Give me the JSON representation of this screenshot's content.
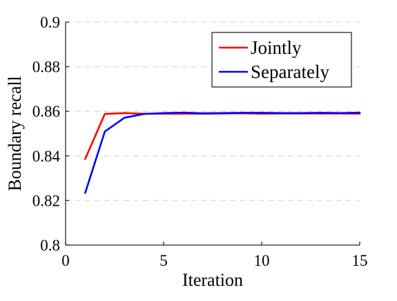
{
  "chart_data": {
    "type": "line",
    "title": "",
    "xlabel": "Iteration",
    "ylabel": "Boundary recall",
    "xlim": [
      0,
      15
    ],
    "ylim": [
      0.8,
      0.9
    ],
    "x_ticks": [
      0,
      5,
      10,
      15
    ],
    "x_tick_labels": [
      "0",
      "5",
      "10",
      "15"
    ],
    "y_ticks": [
      0.8,
      0.82,
      0.84,
      0.86,
      0.88,
      0.9
    ],
    "y_tick_labels": [
      "0.8",
      "0.82",
      "0.84",
      "0.86",
      "0.88",
      "0.9"
    ],
    "grid": "horizontal dashed",
    "legend_position": "top-right",
    "x": [
      1,
      2,
      3,
      4,
      5,
      6,
      7,
      8,
      9,
      10,
      11,
      12,
      13,
      14,
      15
    ],
    "series": [
      {
        "name": "Jointly",
        "color": "#ff0000",
        "values": [
          0.8386,
          0.8588,
          0.8592,
          0.8589,
          0.8589,
          0.8589,
          0.8589,
          0.859,
          0.8591,
          0.8589,
          0.859,
          0.859,
          0.859,
          0.859,
          0.8589
        ]
      },
      {
        "name": "Separately",
        "color": "#0000ff",
        "values": [
          0.8234,
          0.8509,
          0.8571,
          0.8588,
          0.8592,
          0.8594,
          0.8591,
          0.8592,
          0.8593,
          0.8593,
          0.8592,
          0.8592,
          0.8593,
          0.8592,
          0.8594
        ]
      }
    ]
  }
}
